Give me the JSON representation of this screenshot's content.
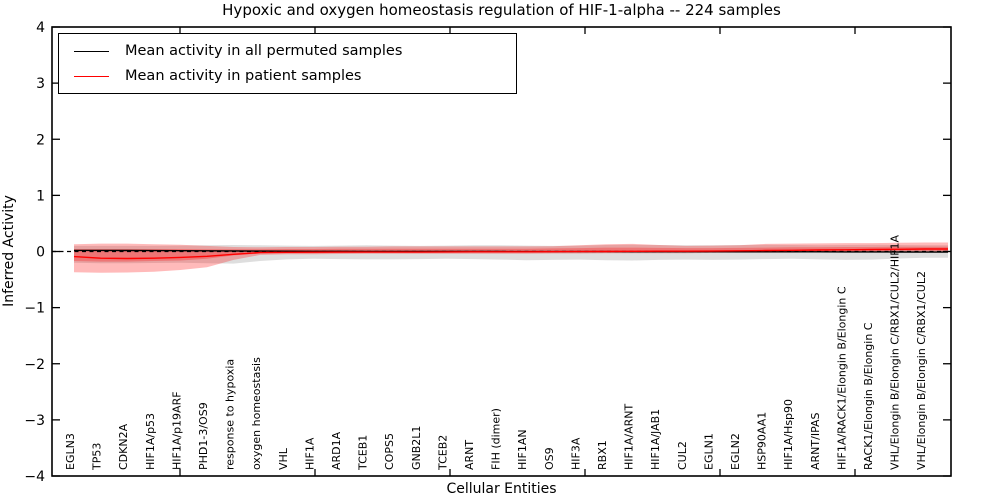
{
  "figure": {
    "background": "#ffffff",
    "frame_color": "#000000"
  },
  "chart_data": {
    "type": "line",
    "title": "Hypoxic and oxygen homeostasis regulation of HIF-1-alpha -- 224 samples",
    "xlabel": "Cellular Entities",
    "ylabel": "Inferred Activity",
    "ylim": [
      -4,
      4
    ],
    "yticks": [
      4,
      3,
      2,
      1,
      0,
      -1,
      -2,
      -3,
      -4
    ],
    "ytick_labels": [
      "4",
      "3",
      "2",
      "1",
      "0",
      "−1",
      "−2",
      "−3",
      "−4"
    ],
    "grid": false,
    "legend_position": "upper-left",
    "categories": [
      "EGLN3",
      "TP53",
      "CDKN2A",
      "HIF1A/p53",
      "HIF1A/p19ARF",
      "PHD1-3/OS9",
      "response to hypoxia",
      "oxygen homeostasis",
      "VHL",
      "HIF1A",
      "ARD1A",
      "TCEB1",
      "COPS5",
      "GNB2L1",
      "TCEB2",
      "ARNT",
      "FIH (dimer)",
      "HIF1AN",
      "OS9",
      "HIF3A",
      "RBX1",
      "HIF1A/ARNT",
      "HIF1A/JAB1",
      "CUL2",
      "EGLN1",
      "EGLN2",
      "HSP90AA1",
      "HIF1A/Hsp90",
      "ARNT/IPAS",
      "HIF1A/RACK1/Elongin B/Elongin C",
      "RACK1/Elongin B/Elongin C",
      "VHL/Elongin B/Elongin C/RBX1/CUL2/HIF1A",
      "VHL/Elongin B/Elongin C/RBX1/CUL2"
    ],
    "series": [
      {
        "name": "Mean activity in all permuted samples",
        "color": "#000000",
        "style": "solid",
        "values": [
          0.02,
          0.02,
          0.018,
          0.016,
          0.014,
          0.012,
          0.01,
          0.008,
          0.006,
          0.004,
          0.003,
          0.002,
          0.002,
          0.001,
          0,
          0,
          0,
          -0.001,
          -0.002,
          -0.002,
          -0.002,
          -0.003,
          -0.003,
          -0.004,
          -0.004,
          -0.005,
          -0.005,
          -0.006,
          -0.006,
          -0.007,
          -0.008,
          -0.009,
          -0.01
        ]
      },
      {
        "name": "Mean activity in patient samples",
        "color": "#ff0000",
        "style": "solid",
        "values": [
          -0.09,
          -0.12,
          -0.125,
          -0.12,
          -0.105,
          -0.085,
          -0.05,
          -0.02,
          -0.015,
          -0.012,
          -0.01,
          -0.01,
          -0.01,
          -0.01,
          -0.008,
          -0.006,
          -0.005,
          -0.005,
          -0.004,
          -0.002,
          0,
          0.003,
          0.005,
          0.006,
          0.008,
          0.012,
          0.018,
          0.022,
          0.026,
          0.03,
          0.035,
          0.04,
          0.045
        ]
      }
    ],
    "bands": [
      {
        "name": "permuted-sample-range",
        "color": "#000000",
        "opacity": 0.13,
        "upper": [
          0.1,
          0.1,
          0.1,
          0.1,
          0.105,
          0.11,
          0.115,
          0.11,
          0.105,
          0.1,
          0.105,
          0.11,
          0.105,
          0.1,
          0.105,
          0.11,
          0.11,
          0.105,
          0.1,
          0.105,
          0.115,
          0.12,
          0.115,
          0.11,
          0.11,
          0.115,
          0.12,
          0.115,
          0.11,
          0.115,
          0.12,
          0.115,
          0.11
        ],
        "lower": [
          -0.2,
          -0.21,
          -0.21,
          -0.205,
          -0.2,
          -0.21,
          -0.215,
          -0.17,
          -0.14,
          -0.13,
          -0.135,
          -0.14,
          -0.14,
          -0.135,
          -0.13,
          -0.135,
          -0.145,
          -0.155,
          -0.15,
          -0.145,
          -0.155,
          -0.16,
          -0.15,
          -0.145,
          -0.15,
          -0.145,
          -0.135,
          -0.13,
          -0.14,
          -0.15,
          -0.145,
          -0.125,
          -0.11
        ]
      },
      {
        "name": "patient-sample-range-outer",
        "color": "#ff0000",
        "opacity": 0.27,
        "upper": [
          0.13,
          0.14,
          0.14,
          0.13,
          0.12,
          0.1,
          0.08,
          0.075,
          0.08,
          0.08,
          0.085,
          0.085,
          0.09,
          0.09,
          0.09,
          0.09,
          0.09,
          0.09,
          0.095,
          0.11,
          0.13,
          0.135,
          0.115,
          0.1,
          0.105,
          0.11,
          0.135,
          0.14,
          0.145,
          0.15,
          0.15,
          0.155,
          0.16
        ],
        "lower": [
          -0.37,
          -0.38,
          -0.375,
          -0.36,
          -0.33,
          -0.28,
          -0.15,
          -0.06,
          -0.05,
          -0.05,
          -0.045,
          -0.04,
          -0.04,
          -0.04,
          -0.04,
          -0.04,
          -0.04,
          -0.04,
          -0.035,
          -0.035,
          -0.03,
          -0.03,
          -0.03,
          -0.03,
          -0.025,
          -0.02,
          -0.02,
          -0.02,
          -0.015,
          -0.015,
          -0.01,
          -0.01,
          -0.01
        ]
      },
      {
        "name": "patient-sample-range-inner",
        "color": "#ff0000",
        "opacity": 0.27,
        "upper": [
          0.045,
          0.045,
          0.045,
          0.045,
          0.045,
          0.04,
          0.04,
          0.04,
          0.045,
          0.045,
          0.05,
          0.05,
          0.05,
          0.05,
          0.05,
          0.05,
          0.05,
          0.05,
          0.055,
          0.06,
          0.07,
          0.07,
          0.065,
          0.06,
          0.06,
          0.065,
          0.07,
          0.075,
          0.075,
          0.08,
          0.08,
          0.085,
          0.085
        ],
        "lower": [
          -0.17,
          -0.18,
          -0.18,
          -0.17,
          -0.16,
          -0.13,
          -0.07,
          -0.035,
          -0.03,
          -0.03,
          -0.025,
          -0.02,
          -0.02,
          -0.02,
          -0.02,
          -0.02,
          -0.02,
          -0.02,
          -0.02,
          -0.015,
          -0.015,
          -0.01,
          -0.01,
          -0.01,
          -0.01,
          -0.005,
          0,
          0,
          0,
          0.005,
          0.005,
          0.01,
          0.01
        ]
      }
    ],
    "zero_line": {
      "value": 0,
      "style": "dashed",
      "color": "#000000"
    }
  },
  "legend": {
    "items": [
      {
        "label": "Mean activity in all permuted samples",
        "color": "#000000"
      },
      {
        "label": "Mean activity in patient samples",
        "color": "#ff0000"
      }
    ]
  }
}
